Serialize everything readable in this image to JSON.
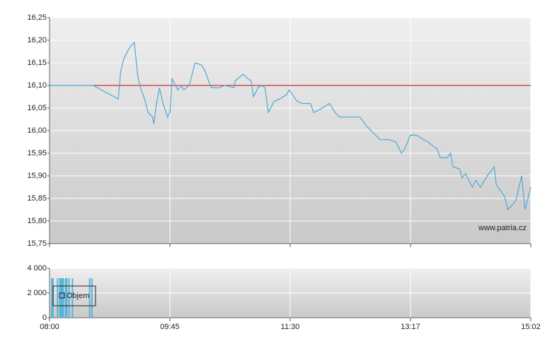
{
  "chart_data": [
    {
      "type": "line",
      "watermark": "www.patria.cz",
      "x": [
        "08:00",
        "08:38",
        "09:00",
        "09:02",
        "09:05",
        "09:09",
        "09:12",
        "09:14",
        "09:17",
        "09:20",
        "09:23",
        "09:26",
        "09:30",
        "09:31",
        "09:33",
        "09:36",
        "09:39",
        "09:43",
        "09:45",
        "09:47",
        "09:50",
        "09:52",
        "09:55",
        "09:57",
        "10:02",
        "10:07",
        "10:13",
        "10:16",
        "10:21",
        "10:28",
        "10:33",
        "10:41",
        "10:42",
        "10:49",
        "10:53",
        "10:56",
        "10:58",
        "11:02",
        "11:05",
        "11:08",
        "11:11",
        "11:16",
        "11:21",
        "11:27",
        "11:29",
        "11:32",
        "11:36",
        "11:41",
        "11:48",
        "11:51",
        "11:55",
        "12:05",
        "12:10",
        "12:14",
        "12:32",
        "12:38",
        "12:46",
        "12:50",
        "12:58",
        "13:04",
        "13:09",
        "13:12",
        "13:17",
        "13:22",
        "13:32",
        "13:40",
        "13:43",
        "13:49",
        "13:52",
        "13:54",
        "14:00",
        "14:02",
        "14:05",
        "14:11",
        "14:14",
        "14:18",
        "14:24",
        "14:30",
        "14:32",
        "14:39",
        "14:42",
        "14:49",
        "14:54",
        "14:57",
        "15:02"
      ],
      "series": [
        {
          "color": "#4fa8d6",
          "values": [
            16.1,
            16.1,
            16.07,
            16.13,
            16.16,
            16.18,
            16.19,
            16.195,
            16.12,
            16.09,
            16.07,
            16.04,
            16.03,
            16.015,
            16.055,
            16.095,
            16.06,
            16.03,
            16.04,
            16.115,
            16.1,
            16.09,
            16.1,
            16.09,
            16.1,
            16.15,
            16.145,
            16.13,
            16.095,
            16.095,
            16.1,
            16.095,
            16.11,
            16.125,
            16.115,
            16.11,
            16.075,
            16.095,
            16.1,
            16.095,
            16.04,
            16.065,
            16.07,
            16.08,
            16.09,
            16.08,
            16.065,
            16.06,
            16.06,
            16.04,
            16.045,
            16.06,
            16.04,
            16.03,
            16.03,
            16.01,
            15.99,
            15.98,
            15.98,
            15.975,
            15.95,
            15.96,
            15.99,
            15.99,
            15.975,
            15.96,
            15.94,
            15.94,
            15.95,
            15.92,
            15.915,
            15.895,
            15.905,
            15.875,
            15.89,
            15.875,
            15.9,
            15.92,
            15.88,
            15.855,
            15.825,
            15.845,
            15.9,
            15.825,
            15.875
          ]
        }
      ],
      "reference_line": {
        "value": 16.1,
        "color": "#cc0000"
      },
      "ylim": [
        15.75,
        16.25
      ],
      "yticks": [
        {
          "value": 15.75,
          "label": "15,75"
        },
        {
          "value": 15.8,
          "label": "15,80"
        },
        {
          "value": 15.85,
          "label": "15,85"
        },
        {
          "value": 15.9,
          "label": "15,90"
        },
        {
          "value": 15.95,
          "label": "15,95"
        },
        {
          "value": 16.0,
          "label": "16,00"
        },
        {
          "value": 16.05,
          "label": "16,05"
        },
        {
          "value": 16.1,
          "label": "16,10"
        },
        {
          "value": 16.15,
          "label": "16,15"
        },
        {
          "value": 16.2,
          "label": "16,20"
        },
        {
          "value": 16.25,
          "label": "16,25"
        }
      ],
      "grid": true
    },
    {
      "type": "bar",
      "x": [
        "08:02",
        "08:03",
        "08:07",
        "08:09",
        "08:10",
        "08:11",
        "08:12",
        "08:14",
        "08:15",
        "08:17",
        "08:20",
        "08:35",
        "08:37"
      ],
      "series": [
        {
          "name": "Objem",
          "color": "#58b3d8",
          "values": [
            3200,
            3200,
            3200,
            3200,
            3200,
            3200,
            3200,
            3200,
            3200,
            3200,
            3200,
            3200,
            3200
          ]
        }
      ],
      "ylim": [
        0,
        4000
      ],
      "yticks": [
        {
          "value": 0,
          "label": "0"
        },
        {
          "value": 2000,
          "label": "2 000"
        },
        {
          "value": 4000,
          "label": "4 000"
        }
      ],
      "xticks": [
        "08:00",
        "09:45",
        "11:30",
        "13:17",
        "15:02"
      ],
      "legend": "top-left",
      "grid": true
    }
  ]
}
